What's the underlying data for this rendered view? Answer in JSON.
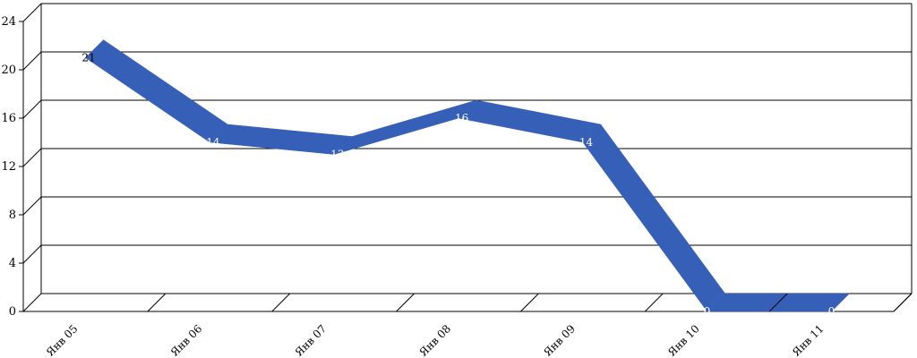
{
  "chart_data": {
    "type": "line",
    "style": "3d-ribbon",
    "categories": [
      "Янв 05",
      "Янв 06",
      "Янв 07",
      "Янв 08",
      "Янв 09",
      "Янв 10",
      "Янв 11"
    ],
    "series": [
      {
        "values": [
          21,
          14,
          13,
          16,
          14,
          0,
          0
        ],
        "color": "#365fb7"
      }
    ],
    "data_labels": [
      "21",
      "14",
      "13",
      "16",
      "14",
      "0",
      "0"
    ],
    "ylim": [
      0,
      24
    ],
    "yticks": [
      0,
      4,
      8,
      12,
      16,
      20,
      24
    ],
    "ytick_labels": [
      "0",
      "4",
      "8",
      "12",
      "16",
      "20",
      "24"
    ],
    "grid": true,
    "legend": "none"
  }
}
